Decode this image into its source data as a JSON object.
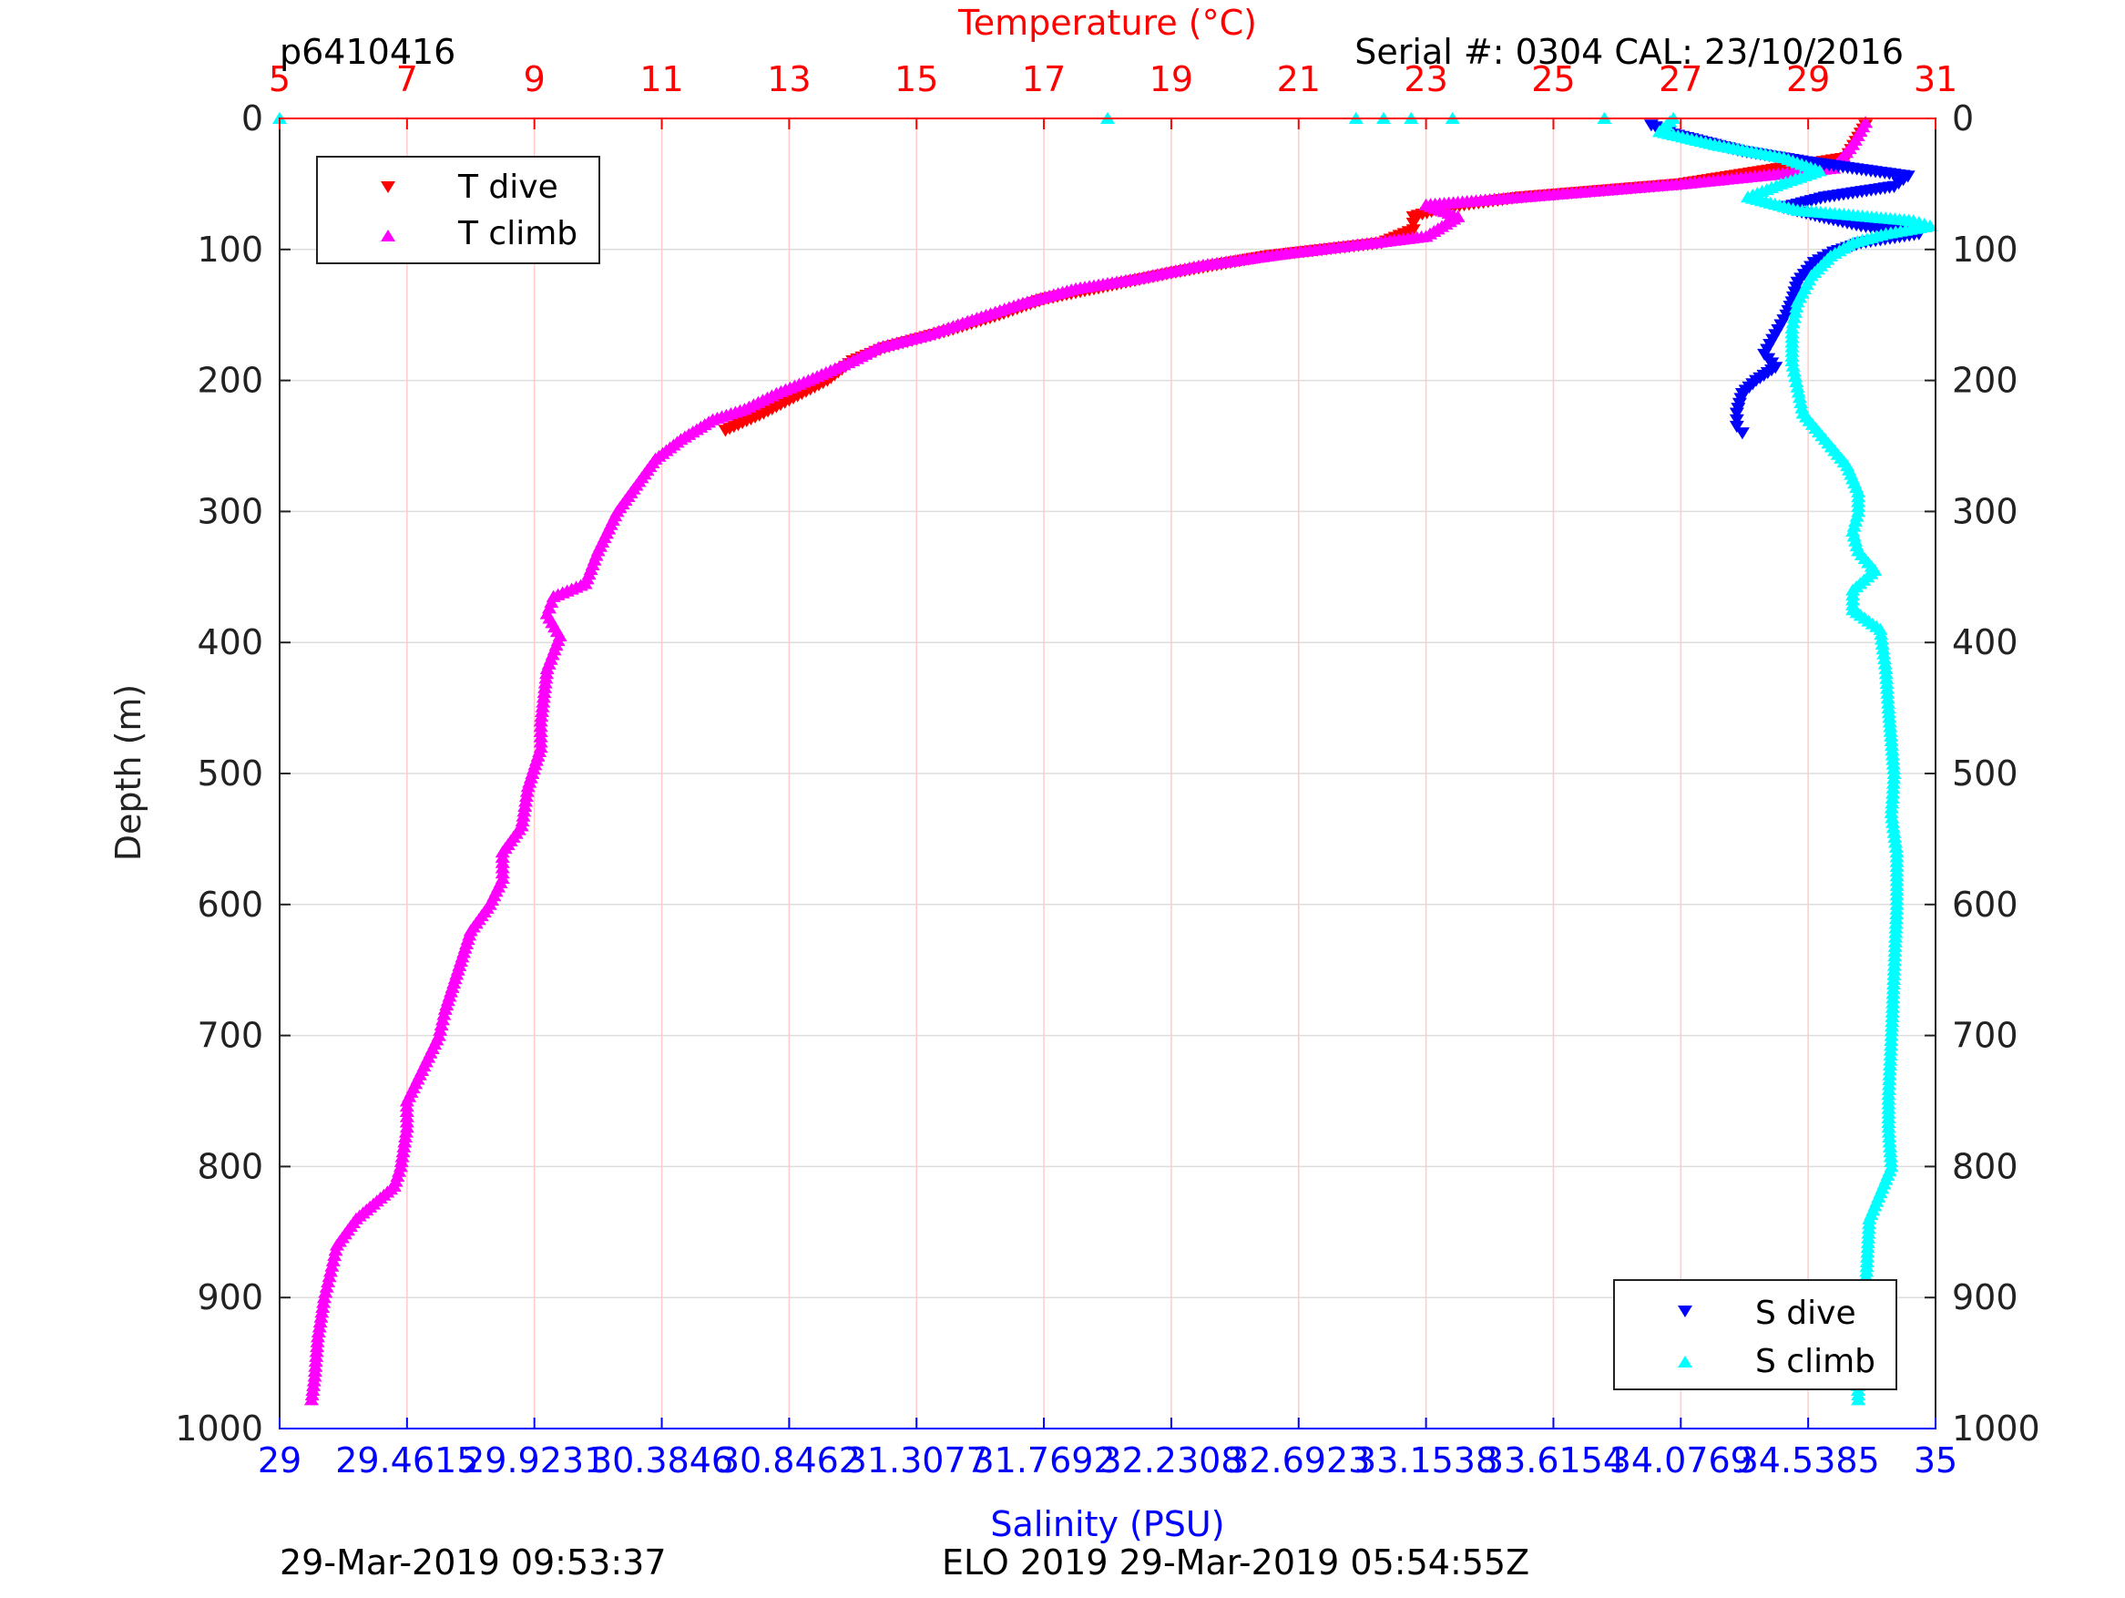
{
  "header": {
    "profile_id": "p6410416",
    "serial_cal": "Serial #: 0304  CAL: 23/10/2016"
  },
  "footer": {
    "left_timestamp": "29-Mar-2019 09:53:37",
    "right_text": "ELO 2019 29-Mar-2019 05:54:55Z"
  },
  "colors": {
    "t_dive": "#ff0000",
    "t_climb": "#ff00ff",
    "s_dive": "#0000ff",
    "s_climb": "#00ffff",
    "temperature_axis": "#ff0000",
    "salinity_axis": "#0000ff",
    "grid_temperature": "#ffcccc",
    "grid_depth": "#dddddd"
  },
  "chart_data": {
    "type": "scatter",
    "title": "",
    "ylabel": "Depth (m)",
    "ylim": [
      0,
      1000
    ],
    "y_reversed": true,
    "y_ticks": [
      "0",
      "100",
      "200",
      "300",
      "400",
      "500",
      "600",
      "700",
      "800",
      "900",
      "1000"
    ],
    "top_axis": {
      "label": "Temperature (°C)",
      "range": [
        5,
        31
      ],
      "ticks": [
        "5",
        "7",
        "9",
        "11",
        "13",
        "15",
        "17",
        "19",
        "21",
        "23",
        "25",
        "27",
        "29",
        "31"
      ]
    },
    "bottom_axis": {
      "label": "Salinity (PSU)",
      "range": [
        29,
        35
      ],
      "ticks": [
        "29",
        "29.4615",
        "29.9231",
        "30.3846",
        "30.8462",
        "31.3077",
        "31.7692",
        "32.2308",
        "32.6923",
        "33.1538",
        "33.6154",
        "34.0769",
        "34.5385",
        "35"
      ]
    },
    "grid": true,
    "legends": [
      {
        "placement": "top-left",
        "entries": [
          "T dive",
          "T climb"
        ]
      },
      {
        "placement": "bottom-right",
        "entries": [
          "S dive",
          "S climb"
        ]
      }
    ],
    "series": [
      {
        "name": "T dive",
        "axis": "temperature",
        "marker": "triangle-down",
        "points": [
          [
            29.9,
            5
          ],
          [
            29.6,
            30
          ],
          [
            27.0,
            50
          ],
          [
            24.5,
            60
          ],
          [
            23.3,
            68
          ],
          [
            22.8,
            75
          ],
          [
            22.8,
            85
          ],
          [
            22.3,
            95
          ],
          [
            20.5,
            105
          ],
          [
            19.0,
            118
          ],
          [
            18.0,
            128
          ],
          [
            17.0,
            138
          ],
          [
            16.3,
            150
          ],
          [
            15.5,
            162
          ],
          [
            14.5,
            175
          ],
          [
            14.0,
            185
          ],
          [
            13.6,
            200
          ],
          [
            13.2,
            210
          ],
          [
            12.6,
            225
          ],
          [
            12.0,
            238
          ]
        ]
      },
      {
        "name": "T climb",
        "axis": "temperature",
        "marker": "triangle-up",
        "points": [
          [
            29.9,
            3
          ],
          [
            29.7,
            20
          ],
          [
            29.4,
            38
          ],
          [
            27.0,
            50
          ],
          [
            24.5,
            60
          ],
          [
            23.0,
            66
          ],
          [
            23.5,
            75
          ],
          [
            23.0,
            90
          ],
          [
            22.0,
            96
          ],
          [
            20.8,
            103
          ],
          [
            19.5,
            112
          ],
          [
            18.5,
            122
          ],
          [
            17.5,
            130
          ],
          [
            16.6,
            142
          ],
          [
            15.8,
            155
          ],
          [
            15.2,
            165
          ],
          [
            14.4,
            175
          ],
          [
            14.0,
            185
          ],
          [
            13.3,
            200
          ],
          [
            12.8,
            210
          ],
          [
            12.3,
            222
          ],
          [
            11.8,
            230
          ],
          [
            11.3,
            245
          ],
          [
            10.9,
            260
          ],
          [
            10.6,
            280
          ],
          [
            10.3,
            300
          ],
          [
            10.0,
            330
          ],
          [
            9.8,
            355
          ],
          [
            9.3,
            365
          ],
          [
            9.2,
            378
          ],
          [
            9.4,
            395
          ],
          [
            9.2,
            420
          ],
          [
            9.1,
            460
          ],
          [
            9.1,
            480
          ],
          [
            8.9,
            510
          ],
          [
            8.8,
            540
          ],
          [
            8.5,
            560
          ],
          [
            8.5,
            580
          ],
          [
            8.3,
            600
          ],
          [
            8.0,
            620
          ],
          [
            7.8,
            650
          ],
          [
            7.6,
            680
          ],
          [
            7.5,
            700
          ],
          [
            7.2,
            730
          ],
          [
            7.0,
            750
          ],
          [
            7.0,
            770
          ],
          [
            6.9,
            800
          ],
          [
            6.8,
            815
          ],
          [
            6.2,
            840
          ],
          [
            5.9,
            860
          ],
          [
            5.8,
            880
          ],
          [
            5.7,
            900
          ],
          [
            5.6,
            930
          ],
          [
            5.55,
            960
          ],
          [
            5.5,
            978
          ]
        ]
      },
      {
        "name": "S dive",
        "axis": "salinity",
        "marker": "triangle-down",
        "points": [
          [
            33.97,
            5
          ],
          [
            34.05,
            12
          ],
          [
            34.3,
            25
          ],
          [
            34.53,
            33
          ],
          [
            34.9,
            44
          ],
          [
            34.85,
            52
          ],
          [
            34.6,
            60
          ],
          [
            34.45,
            68
          ],
          [
            34.58,
            75
          ],
          [
            34.73,
            82
          ],
          [
            34.94,
            88
          ],
          [
            34.73,
            95
          ],
          [
            34.63,
            102
          ],
          [
            34.56,
            110
          ],
          [
            34.5,
            125
          ],
          [
            34.48,
            140
          ],
          [
            34.46,
            150
          ],
          [
            34.42,
            165
          ],
          [
            34.38,
            180
          ],
          [
            34.42,
            190
          ],
          [
            34.35,
            200
          ],
          [
            34.3,
            210
          ],
          [
            34.28,
            225
          ],
          [
            34.28,
            235
          ],
          [
            34.3,
            240
          ]
        ]
      },
      {
        "name": "S climb",
        "axis": "salinity",
        "marker": "triangle-up",
        "points": [
          [
            29.0,
            0
          ],
          [
            32.0,
            0
          ],
          [
            32.9,
            0
          ],
          [
            33.0,
            0
          ],
          [
            33.1,
            0
          ],
          [
            33.25,
            0
          ],
          [
            33.8,
            0
          ],
          [
            34.05,
            0
          ],
          [
            34.0,
            10
          ],
          [
            34.2,
            20
          ],
          [
            34.45,
            30
          ],
          [
            34.58,
            40
          ],
          [
            34.44,
            50
          ],
          [
            34.32,
            60
          ],
          [
            34.5,
            70
          ],
          [
            34.92,
            78
          ],
          [
            34.98,
            82
          ],
          [
            34.82,
            88
          ],
          [
            34.7,
            95
          ],
          [
            34.62,
            105
          ],
          [
            34.55,
            120
          ],
          [
            34.5,
            140
          ],
          [
            34.48,
            160
          ],
          [
            34.48,
            185
          ],
          [
            34.5,
            205
          ],
          [
            34.52,
            225
          ],
          [
            34.6,
            245
          ],
          [
            34.68,
            265
          ],
          [
            34.72,
            285
          ],
          [
            34.72,
            300
          ],
          [
            34.7,
            315
          ],
          [
            34.72,
            330
          ],
          [
            34.78,
            345
          ],
          [
            34.7,
            360
          ],
          [
            34.7,
            375
          ],
          [
            34.8,
            390
          ],
          [
            34.82,
            420
          ],
          [
            34.83,
            450
          ],
          [
            34.84,
            475
          ],
          [
            34.85,
            500
          ],
          [
            34.84,
            530
          ],
          [
            34.86,
            560
          ],
          [
            34.86,
            600
          ],
          [
            34.85,
            650
          ],
          [
            34.84,
            700
          ],
          [
            34.83,
            745
          ],
          [
            34.83,
            770
          ],
          [
            34.84,
            800
          ],
          [
            34.76,
            840
          ],
          [
            34.75,
            880
          ],
          [
            34.73,
            920
          ],
          [
            34.72,
            960
          ],
          [
            34.72,
            978
          ]
        ]
      }
    ]
  }
}
